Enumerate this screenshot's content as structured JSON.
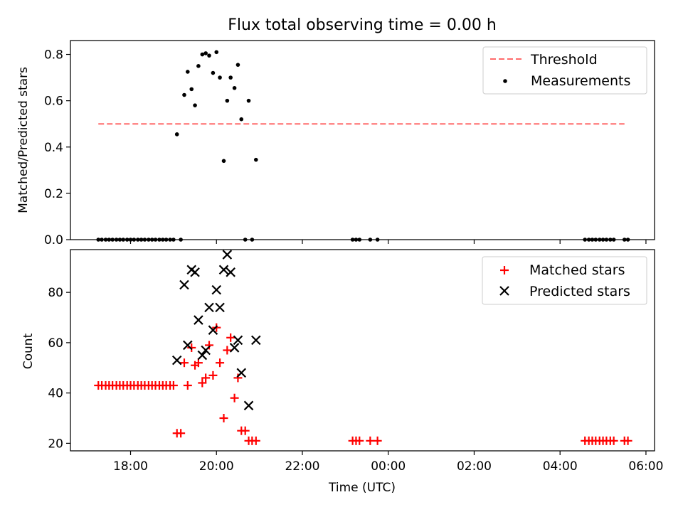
{
  "title": "Flux total observing time = 0.00 h",
  "colors": {
    "threshold": "#ff6b6b",
    "measurement": "#000000",
    "matched": "#ff0000",
    "predicted": "#000000"
  },
  "chart_data": [
    {
      "type": "scatter",
      "panel": "top",
      "ylabel": "Matched/Predicted stars",
      "xlabel": "",
      "ylim": [
        0,
        0.86
      ],
      "yticks": [
        0.0,
        0.2,
        0.4,
        0.6,
        0.8
      ],
      "ytick_labels": [
        "0.0",
        "0.2",
        "0.4",
        "0.6",
        "0.8"
      ],
      "legend": {
        "placement": "top-right",
        "entries": [
          "Threshold",
          "Measurements"
        ]
      },
      "threshold": {
        "name": "Threshold",
        "value": 0.5,
        "x_range": [
          17.25,
          29.5
        ]
      },
      "series": [
        {
          "name": "Measurements",
          "points": [
            [
              17.25,
              0
            ],
            [
              17.33,
              0
            ],
            [
              17.42,
              0
            ],
            [
              17.5,
              0
            ],
            [
              17.58,
              0
            ],
            [
              17.67,
              0
            ],
            [
              17.75,
              0
            ],
            [
              17.83,
              0
            ],
            [
              17.92,
              0
            ],
            [
              18.0,
              0
            ],
            [
              18.08,
              0
            ],
            [
              18.17,
              0
            ],
            [
              18.25,
              0
            ],
            [
              18.33,
              0
            ],
            [
              18.42,
              0
            ],
            [
              18.5,
              0
            ],
            [
              18.58,
              0
            ],
            [
              18.67,
              0
            ],
            [
              18.75,
              0
            ],
            [
              18.83,
              0
            ],
            [
              18.92,
              0
            ],
            [
              19.0,
              0
            ],
            [
              19.08,
              0.455
            ],
            [
              19.17,
              0
            ],
            [
              19.25,
              0.625
            ],
            [
              19.33,
              0.725
            ],
            [
              19.42,
              0.65
            ],
            [
              19.5,
              0.58
            ],
            [
              19.58,
              0.75
            ],
            [
              19.67,
              0.8
            ],
            [
              19.75,
              0.805
            ],
            [
              19.83,
              0.795
            ],
            [
              19.92,
              0.72
            ],
            [
              20.0,
              0.81
            ],
            [
              20.08,
              0.7
            ],
            [
              20.17,
              0.34
            ],
            [
              20.25,
              0.6
            ],
            [
              20.33,
              0.7
            ],
            [
              20.42,
              0.655
            ],
            [
              20.5,
              0.755
            ],
            [
              20.58,
              0.52
            ],
            [
              20.67,
              0
            ],
            [
              20.75,
              0.6
            ],
            [
              20.83,
              0
            ],
            [
              20.92,
              0.345
            ],
            [
              23.17,
              0
            ],
            [
              23.25,
              0
            ],
            [
              23.33,
              0
            ],
            [
              23.58,
              0
            ],
            [
              23.75,
              0
            ],
            [
              28.58,
              0
            ],
            [
              28.67,
              0
            ],
            [
              28.75,
              0
            ],
            [
              28.83,
              0
            ],
            [
              28.92,
              0
            ],
            [
              29.0,
              0
            ],
            [
              29.08,
              0
            ],
            [
              29.17,
              0
            ],
            [
              29.25,
              0
            ],
            [
              29.5,
              0
            ],
            [
              29.58,
              0
            ]
          ]
        }
      ]
    },
    {
      "type": "scatter",
      "panel": "bottom",
      "ylabel": "Count",
      "xlabel": "Time (UTC)",
      "ylim": [
        17,
        97
      ],
      "yticks": [
        20,
        40,
        60,
        80
      ],
      "ytick_labels": [
        "20",
        "40",
        "60",
        "80"
      ],
      "xlim": [
        16.6,
        30.2
      ],
      "xticks": [
        18,
        20,
        22,
        24,
        26,
        28,
        30
      ],
      "xtick_labels": [
        "18:00",
        "20:00",
        "22:00",
        "00:00",
        "02:00",
        "04:00",
        "06:00"
      ],
      "legend": {
        "placement": "top-right",
        "entries": [
          "Matched stars",
          "Predicted stars"
        ]
      },
      "series": [
        {
          "name": "Matched stars",
          "points": [
            [
              17.25,
              43
            ],
            [
              17.33,
              43
            ],
            [
              17.42,
              43
            ],
            [
              17.5,
              43
            ],
            [
              17.58,
              43
            ],
            [
              17.67,
              43
            ],
            [
              17.75,
              43
            ],
            [
              17.83,
              43
            ],
            [
              17.92,
              43
            ],
            [
              18.0,
              43
            ],
            [
              18.08,
              43
            ],
            [
              18.17,
              43
            ],
            [
              18.25,
              43
            ],
            [
              18.33,
              43
            ],
            [
              18.42,
              43
            ],
            [
              18.5,
              43
            ],
            [
              18.58,
              43
            ],
            [
              18.67,
              43
            ],
            [
              18.75,
              43
            ],
            [
              18.83,
              43
            ],
            [
              18.92,
              43
            ],
            [
              19.0,
              43
            ],
            [
              19.08,
              24
            ],
            [
              19.17,
              24
            ],
            [
              19.25,
              52
            ],
            [
              19.33,
              43
            ],
            [
              19.42,
              58
            ],
            [
              19.5,
              51
            ],
            [
              19.58,
              52
            ],
            [
              19.67,
              44
            ],
            [
              19.75,
              46
            ],
            [
              19.83,
              59
            ],
            [
              19.92,
              47
            ],
            [
              20.0,
              66
            ],
            [
              20.08,
              52
            ],
            [
              20.17,
              30
            ],
            [
              20.25,
              57
            ],
            [
              20.33,
              62
            ],
            [
              20.42,
              38
            ],
            [
              20.5,
              46
            ],
            [
              20.58,
              25
            ],
            [
              20.67,
              25
            ],
            [
              20.75,
              21
            ],
            [
              20.83,
              21
            ],
            [
              20.92,
              21
            ],
            [
              23.17,
              21
            ],
            [
              23.25,
              21
            ],
            [
              23.33,
              21
            ],
            [
              23.58,
              21
            ],
            [
              23.75,
              21
            ],
            [
              28.58,
              21
            ],
            [
              28.67,
              21
            ],
            [
              28.75,
              21
            ],
            [
              28.83,
              21
            ],
            [
              28.92,
              21
            ],
            [
              29.0,
              21
            ],
            [
              29.08,
              21
            ],
            [
              29.17,
              21
            ],
            [
              29.25,
              21
            ],
            [
              29.5,
              21
            ],
            [
              29.58,
              21
            ]
          ]
        },
        {
          "name": "Predicted stars",
          "points": [
            [
              19.08,
              53
            ],
            [
              19.25,
              83
            ],
            [
              19.33,
              59
            ],
            [
              19.42,
              89
            ],
            [
              19.5,
              88
            ],
            [
              19.58,
              69
            ],
            [
              19.67,
              55
            ],
            [
              19.75,
              57
            ],
            [
              19.83,
              74
            ],
            [
              19.92,
              65
            ],
            [
              20.0,
              81
            ],
            [
              20.08,
              74
            ],
            [
              20.17,
              89
            ],
            [
              20.25,
              95
            ],
            [
              20.33,
              88
            ],
            [
              20.42,
              58
            ],
            [
              20.5,
              61
            ],
            [
              20.58,
              48
            ],
            [
              20.75,
              35
            ],
            [
              20.92,
              61
            ]
          ]
        }
      ]
    }
  ]
}
